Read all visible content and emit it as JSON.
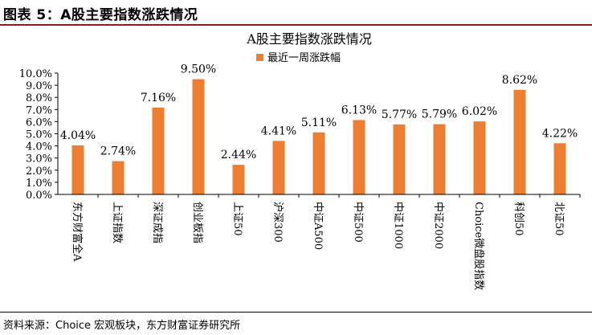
{
  "figure_label": "图表 5：A股主要指数涨跌情况",
  "source_text": "资料来源：Choice 宏观板块，东方财富证券研究所",
  "colors": {
    "bar": "#ed7d31",
    "rule": "#8b1d1d",
    "axis": "#000000"
  },
  "chart_data": {
    "type": "bar",
    "title": "A股主要指数涨跌情况",
    "legend": {
      "position": "top-center",
      "label": "最近一周涨跌幅"
    },
    "categories": [
      "东方财富全A",
      "上证指数",
      "深证成指",
      "创业板指",
      "上证50",
      "沪深300",
      "中证A500",
      "中证500",
      "中证1000",
      "中证2000",
      "Choice微盘股指数",
      "科创50",
      "北证50"
    ],
    "series": [
      {
        "name": "最近一周涨跌幅",
        "values": [
          4.04,
          2.74,
          7.16,
          9.5,
          2.44,
          4.41,
          5.11,
          6.13,
          5.77,
          5.79,
          6.02,
          8.62,
          4.22
        ]
      }
    ],
    "data_labels": [
      "4.04%",
      "2.74%",
      "7.16%",
      "9.50%",
      "2.44%",
      "4.41%",
      "5.11%",
      "6.13%",
      "5.77%",
      "5.79%",
      "6.02%",
      "8.62%",
      "4.22%"
    ],
    "yticks": [
      "0.0%",
      "1.0%",
      "2.0%",
      "3.0%",
      "4.0%",
      "5.0%",
      "6.0%",
      "7.0%",
      "8.0%",
      "9.0%",
      "10.0%"
    ],
    "ylim": [
      0,
      10
    ],
    "grid": false
  }
}
